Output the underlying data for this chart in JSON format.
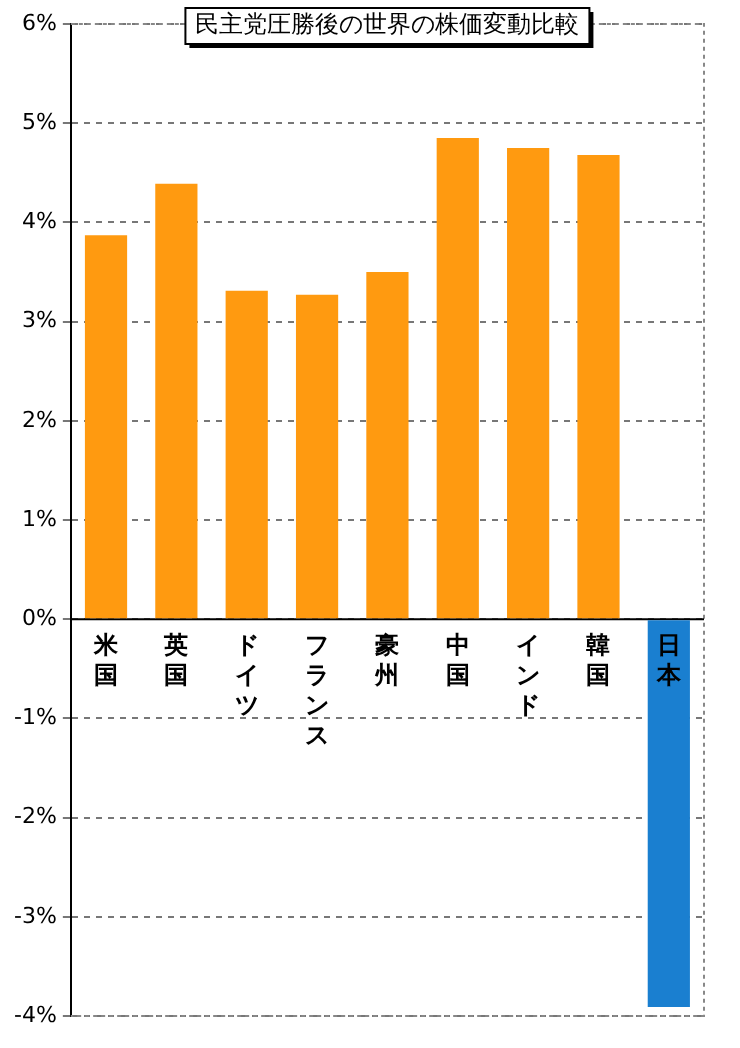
{
  "chart_data": {
    "type": "bar",
    "title": "民主党圧勝後の世界の株価変動比較",
    "categories": [
      "米国",
      "英国",
      "ドイツ",
      "フランス",
      "豪州",
      "中国",
      "インド",
      "韓国",
      "日本"
    ],
    "values": [
      3.87,
      4.39,
      3.31,
      3.27,
      3.5,
      4.85,
      4.75,
      4.68,
      -3.91
    ],
    "colors": [
      "#ff9a10",
      "#ff9a10",
      "#ff9a10",
      "#ff9a10",
      "#ff9a10",
      "#ff9a10",
      "#ff9a10",
      "#ff9a10",
      "#1a7fd0"
    ],
    "ylim": [
      -4,
      6
    ],
    "yticks": [
      {
        "value": -4,
        "label": "-4%"
      },
      {
        "value": -3,
        "label": "-3%"
      },
      {
        "value": -2,
        "label": "-2%"
      },
      {
        "value": -1,
        "label": "-1%"
      },
      {
        "value": 0,
        "label": "0%"
      },
      {
        "value": 1,
        "label": "1%"
      },
      {
        "value": 2,
        "label": "2%"
      },
      {
        "value": 3,
        "label": "3%"
      },
      {
        "value": 4,
        "label": "4%"
      },
      {
        "value": 5,
        "label": "5%"
      },
      {
        "value": 6,
        "label": "6%"
      }
    ],
    "grid": "y",
    "legend": false
  }
}
